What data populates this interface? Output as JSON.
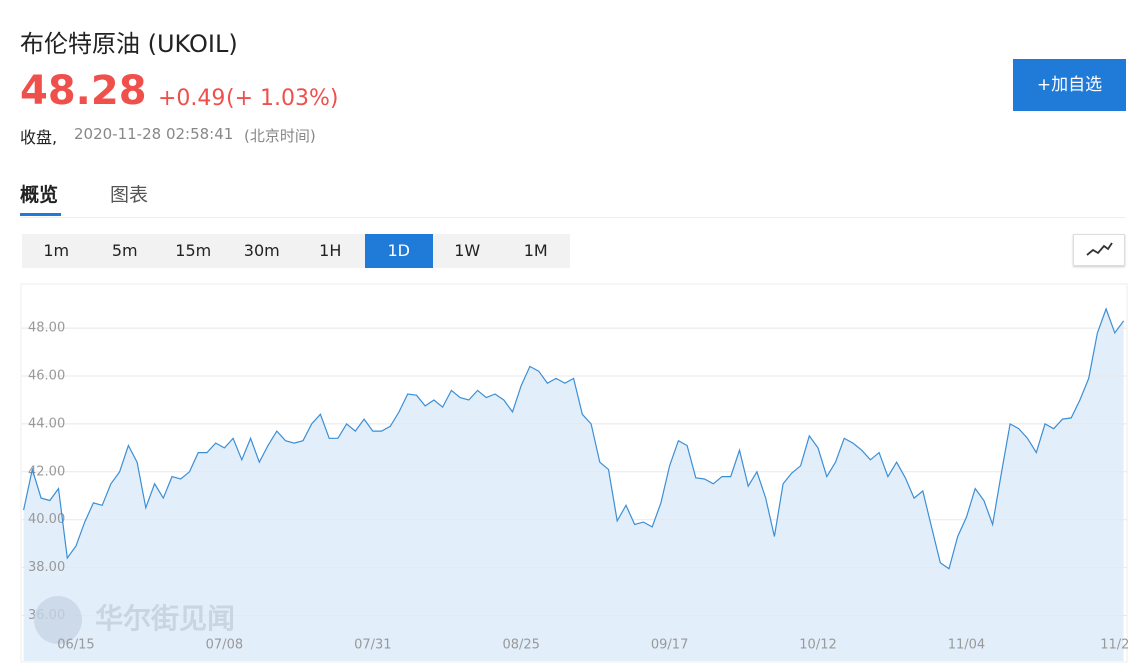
{
  "header": {
    "title": "布伦特原油 (UKOIL)",
    "price": "48.28",
    "change": "+0.49",
    "change_pct": "(+ 1.03%)",
    "status": "收盘,",
    "time": "2020-11-28 02:58:41",
    "timezone": "(北京时间)",
    "button": "+加自选"
  },
  "tabs": {
    "items": [
      "概览",
      "图表"
    ],
    "active": "概览"
  },
  "toolbar": {
    "intervals": [
      "1m",
      "5m",
      "15m",
      "30m",
      "1H",
      "1D",
      "1W",
      "1M"
    ],
    "active": "1D"
  },
  "chart_data": {
    "type": "area",
    "watermark": "华尔街见闻",
    "color": "#3b8fd6",
    "fill": "#e3eefb",
    "categories": [
      null,
      null,
      null,
      null,
      null,
      null,
      "06/15",
      null,
      null,
      null,
      null,
      null,
      null,
      null,
      null,
      null,
      null,
      null,
      null,
      null,
      null,
      null,
      null,
      "07/08",
      null,
      null,
      null,
      null,
      null,
      null,
      null,
      null,
      null,
      null,
      null,
      null,
      null,
      null,
      null,
      null,
      "07/31",
      null,
      null,
      null,
      null,
      null,
      null,
      null,
      null,
      null,
      null,
      null,
      null,
      null,
      null,
      null,
      null,
      "08/25",
      null,
      null,
      null,
      null,
      null,
      null,
      null,
      null,
      null,
      null,
      null,
      null,
      null,
      null,
      null,
      null,
      "09/17",
      null,
      null,
      null,
      null,
      null,
      null,
      null,
      null,
      null,
      null,
      null,
      null,
      null,
      null,
      null,
      null,
      "10/12",
      null,
      null,
      null,
      null,
      null,
      null,
      null,
      null,
      null,
      null,
      null,
      null,
      null,
      null,
      null,
      null,
      "11/04",
      null,
      null,
      null,
      null,
      null,
      null,
      null,
      null,
      null,
      null,
      null,
      null,
      null,
      null,
      null,
      null,
      "11/2",
      null
    ],
    "values": [
      40.4,
      42.1,
      40.9,
      40.8,
      41.3,
      38.4,
      38.9,
      39.9,
      40.7,
      40.6,
      41.5,
      42.0,
      43.1,
      42.4,
      40.5,
      41.5,
      40.9,
      41.8,
      41.7,
      42.0,
      42.8,
      42.8,
      43.2,
      43.0,
      43.4,
      42.5,
      43.4,
      42.4,
      43.1,
      43.7,
      43.3,
      43.2,
      43.3,
      44.0,
      44.4,
      43.4,
      43.4,
      44.0,
      43.7,
      44.2,
      43.7,
      43.7,
      43.9,
      44.5,
      45.25,
      45.2,
      44.75,
      45.0,
      44.7,
      45.4,
      45.1,
      45.0,
      45.4,
      45.1,
      45.25,
      45.0,
      44.5,
      45.6,
      46.4,
      46.2,
      45.7,
      45.9,
      45.7,
      45.9,
      44.4,
      44.0,
      42.4,
      42.1,
      39.95,
      40.6,
      39.8,
      39.9,
      39.7,
      40.7,
      42.25,
      43.3,
      43.1,
      41.75,
      41.7,
      41.5,
      41.8,
      41.8,
      42.9,
      41.4,
      42.0,
      40.9,
      39.3,
      41.5,
      41.95,
      42.25,
      43.5,
      43.0,
      41.8,
      42.4,
      43.4,
      43.2,
      42.9,
      42.5,
      42.8,
      41.8,
      42.4,
      41.75,
      40.9,
      41.2,
      39.7,
      38.2,
      37.95,
      39.3,
      40.1,
      41.3,
      40.8,
      39.8,
      41.95,
      44.0,
      43.8,
      43.4,
      42.8,
      44.0,
      43.8,
      44.2,
      44.25,
      45.0,
      45.9,
      47.8,
      48.8,
      47.8,
      48.3
    ],
    "ylim": [
      34.1,
      49.8
    ],
    "yticks": [
      {
        "value": 36,
        "label": "36.00"
      },
      {
        "value": 38,
        "label": "38.00"
      },
      {
        "value": 40,
        "label": "40.00"
      },
      {
        "value": 42,
        "label": "42.00"
      },
      {
        "value": 44,
        "label": "44.00"
      },
      {
        "value": 46,
        "label": "46.00"
      },
      {
        "value": 48,
        "label": "48.00"
      }
    ],
    "grid": true
  }
}
